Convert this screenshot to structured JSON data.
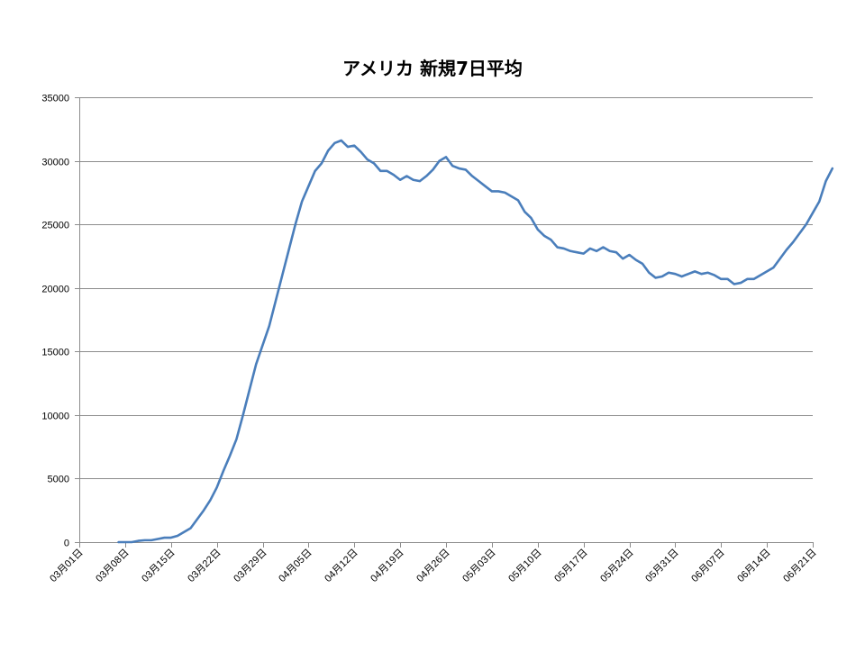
{
  "chart_data": {
    "type": "line",
    "title": "アメリカ 新規7日平均",
    "xlabel": "",
    "ylabel": "",
    "ylim": [
      0,
      35000
    ],
    "yticks": [
      0,
      5000,
      10000,
      15000,
      20000,
      25000,
      30000,
      35000
    ],
    "xtick_labels": [
      "03月01日",
      "03月08日",
      "03月15日",
      "03月22日",
      "03月29日",
      "04月05日",
      "04月12日",
      "04月19日",
      "04月26日",
      "05月03日",
      "05月10日",
      "05月17日",
      "05月24日",
      "05月31日",
      "06月07日",
      "06月14日",
      "06月21日"
    ],
    "grid": true,
    "legend": "none",
    "series_color": "#4a7ebb",
    "series": [
      {
        "x_start": "03月07日",
        "values": [
          0,
          0,
          0,
          100,
          150,
          150,
          250,
          350,
          350,
          500,
          800,
          1100,
          1800,
          2500,
          3300,
          4300,
          5600,
          6800,
          8100,
          10000,
          12000,
          14000,
          15500,
          17000,
          19000,
          21000,
          23000,
          25000,
          26800,
          28000,
          29200,
          29800,
          30800,
          31400,
          31600,
          31100,
          31200,
          30700,
          30100,
          29800,
          29200,
          29200,
          28900,
          28500,
          28800,
          28500,
          28400,
          28800,
          29300,
          30000,
          30300,
          29600,
          29400,
          29300,
          28800,
          28400,
          28000,
          27600,
          27600,
          27500,
          27200,
          26900,
          26000,
          25500,
          24600,
          24100,
          23800,
          23200,
          23100,
          22900,
          22800,
          22700,
          23100,
          22900,
          23200,
          22900,
          22800,
          22300,
          22600,
          22200,
          21900,
          21200,
          20800,
          20900,
          21200,
          21100,
          20900,
          21100,
          21300,
          21100,
          21200,
          21000,
          20700,
          20700,
          20300,
          20400,
          20700,
          20700,
          21000,
          21300,
          21600,
          22300,
          23000,
          23600,
          24300,
          25000,
          25900,
          26800,
          28400,
          29400
        ]
      }
    ]
  }
}
